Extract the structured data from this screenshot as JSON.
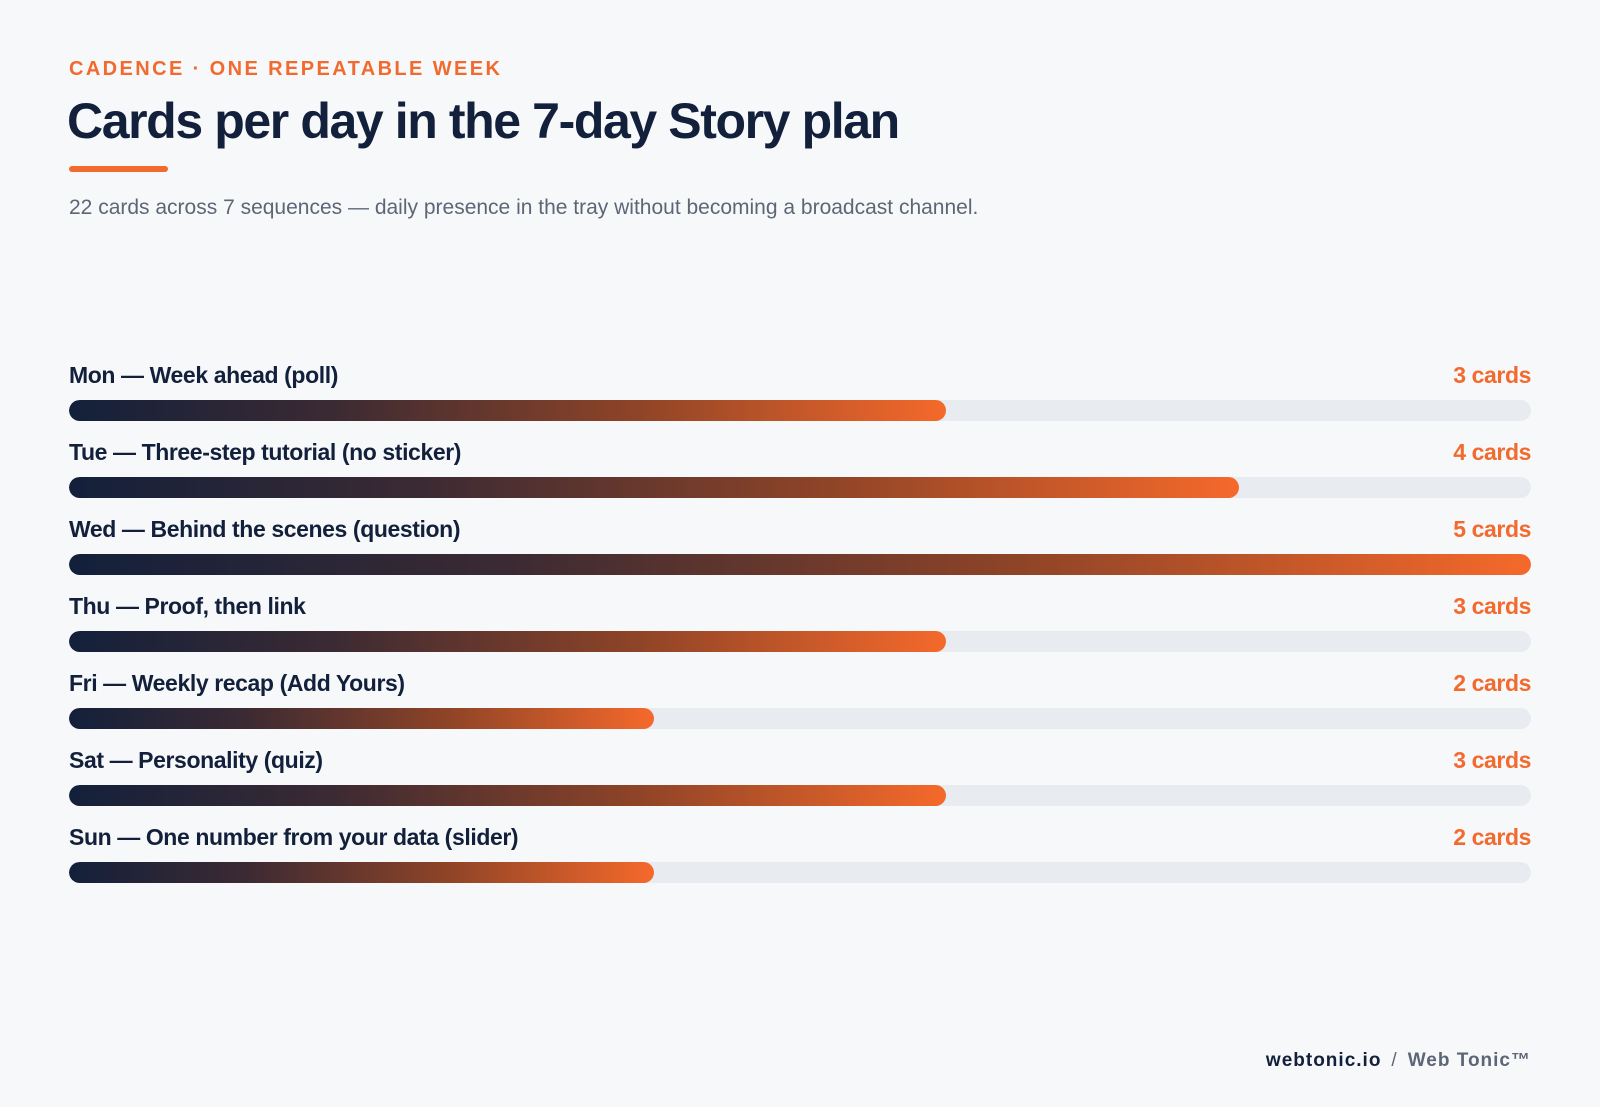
{
  "header": {
    "eyebrow": "CADENCE · ONE REPEATABLE WEEK",
    "title": "Cards per day in the 7-day Story plan",
    "subtitle": "22 cards across 7 sequences — daily presence in the tray without becoming a broadcast channel."
  },
  "colors": {
    "accent": "#f26a2e",
    "navy": "#13203b",
    "track": "#e8ebef",
    "background": "#f7f8fa"
  },
  "chart_data": {
    "type": "bar",
    "orientation": "horizontal",
    "xlim": [
      0,
      5
    ],
    "categories": [
      "Mon — Week ahead (poll)",
      "Tue — Three-step tutorial (no sticker)",
      "Wed — Behind the scenes (question)",
      "Thu — Proof, then link",
      "Fri — Weekly recap (Add Yours)",
      "Sat — Personality (quiz)",
      "Sun — One number from your data (slider)"
    ],
    "values": [
      3,
      4,
      5,
      3,
      2,
      3,
      2
    ],
    "value_labels": [
      "3 cards",
      "4 cards",
      "5 cards",
      "3 cards",
      "2 cards",
      "3 cards",
      "2 cards"
    ]
  },
  "footer": {
    "site": "webtonic.io",
    "separator": "/",
    "brand": "Web Tonic™"
  }
}
